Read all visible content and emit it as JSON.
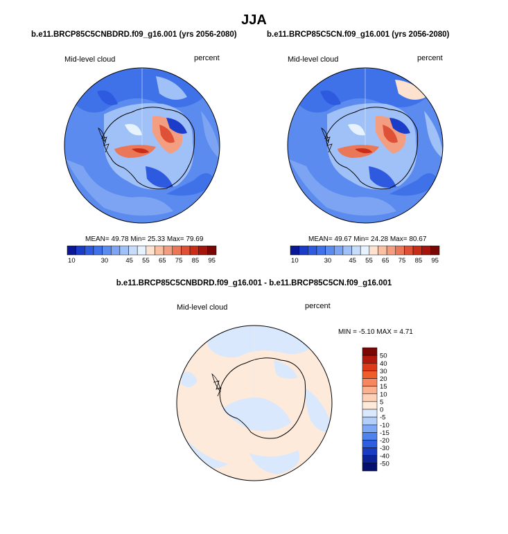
{
  "figure": {
    "season": "JJA",
    "diff_title": "b.e11.BRCP85C5CNBDRD.f09_g16.001 - b.e11.BRCP85C5CN.f09_g16.001"
  },
  "panels": [
    {
      "case_title": "b.e11.BRCP85C5CNBDRD.f09_g16.001 (yrs 2056-2080)",
      "variable": "Mid-level cloud",
      "units": "percent",
      "stats_text": "MEAN=  49.78  Min=  25.33  Max=  79.69"
    },
    {
      "case_title": "b.e11.BRCP85C5CN.f09_g16.001 (yrs 2056-2080)",
      "variable": "Mid-level cloud",
      "units": "percent",
      "stats_text": "MEAN=  49.67  Min=  24.28  Max=  80.67"
    },
    {
      "variable": "Mid-level cloud",
      "units": "percent",
      "stats_text": "MIN =  -5.10 MAX =   4.71"
    }
  ],
  "chart_data": [
    {
      "type": "heatmap",
      "projection": "south-polar-stereographic",
      "title": "b.e11.BRCP85C5CNBDRD.f09_g16.001 (yrs 2056-2080)",
      "field": "Mid-level cloud",
      "units": "percent",
      "mean": 49.78,
      "min": 25.33,
      "max": 79.69,
      "colorbar": {
        "orientation": "horizontal",
        "levels": [
          10,
          15,
          20,
          25,
          30,
          35,
          40,
          45,
          50,
          55,
          60,
          65,
          70,
          75,
          80,
          85,
          90,
          95
        ],
        "labels": [
          "10",
          "30",
          "45",
          "55",
          "65",
          "75",
          "85",
          "95"
        ],
        "colors": [
          "#0a1896",
          "#1a3cc8",
          "#2e5ae0",
          "#3f72e8",
          "#5b8bef",
          "#7ca4f3",
          "#a0c0f8",
          "#c6dcfb",
          "#e6f2fe",
          "#fde3cf",
          "#f9c0a4",
          "#f39e80",
          "#ea7758",
          "#df5136",
          "#c92d17",
          "#a5150c",
          "#7a0606"
        ]
      }
    },
    {
      "type": "heatmap",
      "projection": "south-polar-stereographic",
      "title": "b.e11.BRCP85C5CN.f09_g16.001 (yrs 2056-2080)",
      "field": "Mid-level cloud",
      "units": "percent",
      "mean": 49.67,
      "min": 24.28,
      "max": 80.67,
      "colorbar": {
        "orientation": "horizontal",
        "levels": [
          10,
          15,
          20,
          25,
          30,
          35,
          40,
          45,
          50,
          55,
          60,
          65,
          70,
          75,
          80,
          85,
          90,
          95
        ],
        "labels": [
          "10",
          "30",
          "45",
          "55",
          "65",
          "75",
          "85",
          "95"
        ],
        "colors": [
          "#0a1896",
          "#1a3cc8",
          "#2e5ae0",
          "#3f72e8",
          "#5b8bef",
          "#7ca4f3",
          "#a0c0f8",
          "#c6dcfb",
          "#e6f2fe",
          "#fde3cf",
          "#f9c0a4",
          "#f39e80",
          "#ea7758",
          "#df5136",
          "#c92d17",
          "#a5150c",
          "#7a0606"
        ]
      }
    },
    {
      "type": "heatmap",
      "projection": "south-polar-stereographic",
      "title": "b.e11.BRCP85C5CNBDRD.f09_g16.001 - b.e11.BRCP85C5CN.f09_g16.001",
      "field": "Mid-level cloud",
      "units": "percent",
      "min": -5.1,
      "max": 4.71,
      "colorbar": {
        "orientation": "vertical",
        "labels_top_to_bottom": [
          "50",
          "40",
          "30",
          "20",
          "15",
          "10",
          "5",
          "0",
          "-5",
          "-10",
          "-15",
          "-20",
          "-30",
          "-40",
          "-50"
        ],
        "colors_top_to_bottom": [
          "#7a0606",
          "#b2190d",
          "#dc3a18",
          "#ef5d2d",
          "#f7875e",
          "#fbb18f",
          "#fdd1b7",
          "#feeadb",
          "#d9e8fc",
          "#b3cff9",
          "#7ea8f3",
          "#4f83ec",
          "#2f5fe0",
          "#1a3cc2",
          "#0c2396",
          "#050f6e"
        ]
      }
    }
  ]
}
